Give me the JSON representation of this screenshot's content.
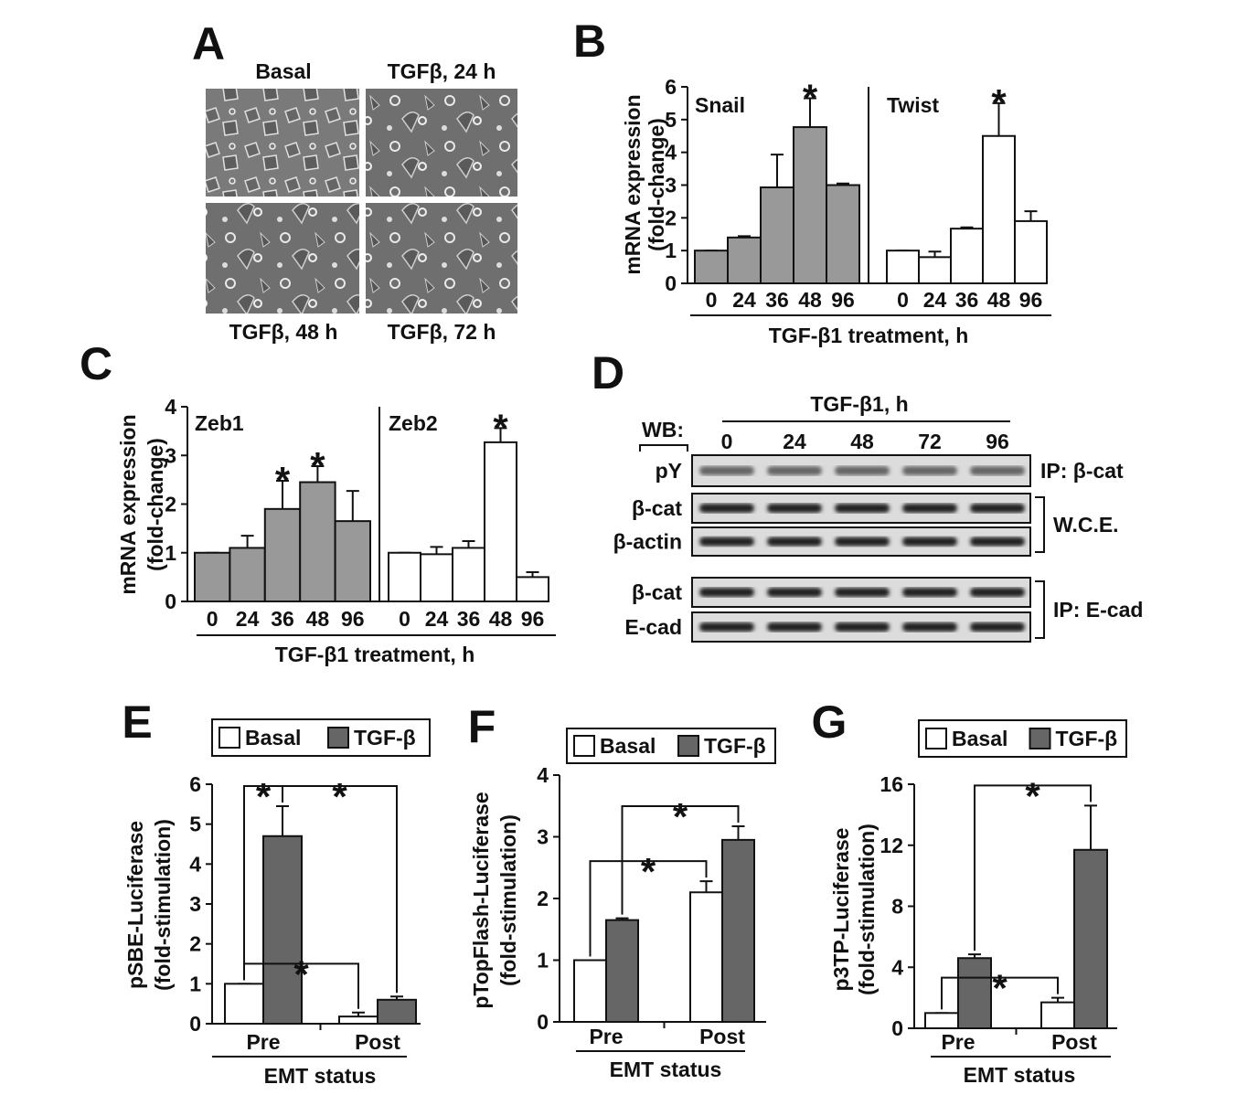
{
  "panel_a": {
    "letter": "A",
    "images": [
      "Basal",
      "TGFβ, 24 h",
      "TGFβ, 48 h",
      "TGFβ, 72 h"
    ]
  },
  "panel_d": {
    "letter": "D",
    "treatment": "TGF-β1, h",
    "wb": "WB:",
    "lanes": [
      "0",
      "24",
      "48",
      "72",
      "96"
    ],
    "rows": [
      "pY",
      "β-cat",
      "β-actin",
      "β-cat",
      "E-cad"
    ],
    "groups": [
      {
        "label": "IP: β-cat",
        "rows": [
          0
        ]
      },
      {
        "label": "W.C.E.",
        "rows": [
          1,
          2
        ]
      },
      {
        "label": "IP: E-cad",
        "rows": [
          3,
          4
        ]
      }
    ]
  },
  "chart_data": [
    {
      "type": "bar",
      "letter": "B",
      "facets": true,
      "ylabel": [
        "mRNA expression",
        "(fold-change)"
      ],
      "xlabel": "TGF-β1 treatment, h",
      "categories": [
        "0",
        "24",
        "36",
        "48",
        "96"
      ],
      "ylim": [
        0,
        6
      ],
      "yticks": [
        0,
        1,
        2,
        3,
        4,
        5,
        6
      ],
      "marker": "*",
      "series": [
        {
          "name": "Snail",
          "color": "#999999",
          "values": [
            1,
            1.4,
            2.93,
            4.77,
            3.0
          ],
          "errors": [
            0,
            0.04,
            1.0,
            0.88,
            0.05
          ],
          "significant": [
            false,
            false,
            false,
            true,
            false
          ]
        },
        {
          "name": "Twist",
          "color": "#ffffff",
          "values": [
            1,
            0.8,
            1.67,
            4.5,
            1.9
          ],
          "errors": [
            0,
            0.17,
            0.04,
            1.0,
            0.3
          ],
          "significant": [
            false,
            false,
            false,
            true,
            false
          ]
        }
      ]
    },
    {
      "type": "bar",
      "letter": "C",
      "facets": true,
      "ylabel": [
        "mRNA expression",
        "(fold-change)"
      ],
      "xlabel": "TGF-β1 treatment, h",
      "categories": [
        "0",
        "24",
        "36",
        "48",
        "96"
      ],
      "ylim": [
        0,
        4
      ],
      "yticks": [
        0,
        1,
        2,
        3,
        4
      ],
      "marker": "*",
      "series": [
        {
          "name": "Zeb1",
          "color": "#999999",
          "values": [
            1,
            1.1,
            1.9,
            2.45,
            1.65
          ],
          "errors": [
            0,
            0.25,
            0.58,
            0.33,
            0.62
          ],
          "significant": [
            false,
            false,
            true,
            true,
            false
          ]
        },
        {
          "name": "Zeb2",
          "color": "#ffffff",
          "values": [
            1,
            0.97,
            1.1,
            3.27,
            0.5
          ],
          "errors": [
            0,
            0.15,
            0.14,
            0.29,
            0.1
          ],
          "significant": [
            false,
            false,
            false,
            true,
            false
          ]
        }
      ]
    },
    {
      "type": "bar",
      "letter": "E",
      "facets": false,
      "legend": true,
      "ylabel": [
        "pSBE-Luciferase",
        "(fold-stimulation)"
      ],
      "xlabel": "EMT status",
      "categories": [
        "Pre",
        "Post"
      ],
      "ylim": [
        0,
        6
      ],
      "yticks": [
        0,
        1,
        2,
        3,
        4,
        5,
        6
      ],
      "series": [
        {
          "name": "Basal",
          "color": "#ffffff",
          "values": [
            1.0,
            0.18
          ],
          "errors": [
            0,
            0.1
          ]
        },
        {
          "name": "TGF-β",
          "color": "#666666",
          "values": [
            4.7,
            0.6
          ],
          "errors": [
            0.75,
            0.08
          ]
        }
      ],
      "brackets": [
        {
          "from": [
            0,
            0
          ],
          "to": [
            1,
            0
          ],
          "label": "*"
        },
        {
          "from": [
            1,
            0
          ],
          "to": [
            1,
            1
          ],
          "label": "*"
        },
        {
          "from": [
            0,
            0
          ],
          "to": [
            0,
            1
          ],
          "label": "*"
        }
      ]
    },
    {
      "type": "bar",
      "letter": "F",
      "facets": false,
      "legend": true,
      "ylabel": [
        "pTopFlash-Luciferase",
        "(fold-stimulation)"
      ],
      "xlabel": "EMT status",
      "categories": [
        "Pre",
        "Post"
      ],
      "ylim": [
        0,
        4
      ],
      "yticks": [
        0,
        1,
        2,
        3,
        4
      ],
      "series": [
        {
          "name": "Basal",
          "color": "#ffffff",
          "values": [
            1.0,
            2.1
          ],
          "errors": [
            0,
            0.18
          ]
        },
        {
          "name": "TGF-β",
          "color": "#666666",
          "values": [
            1.65,
            2.95
          ],
          "errors": [
            0.03,
            0.22
          ]
        }
      ],
      "brackets": [
        {
          "from": [
            0,
            0
          ],
          "to": [
            0,
            1
          ],
          "label": "*"
        },
        {
          "from": [
            1,
            0
          ],
          "to": [
            1,
            1
          ],
          "label": "*"
        }
      ]
    },
    {
      "type": "bar",
      "letter": "G",
      "facets": false,
      "legend": true,
      "ylabel": [
        "p3TP-Luciferase",
        "(fold-stimulation)"
      ],
      "xlabel": "EMT status",
      "categories": [
        "Pre",
        "Post"
      ],
      "ylim": [
        0,
        16
      ],
      "yticks": [
        0,
        4,
        8,
        12,
        16
      ],
      "series": [
        {
          "name": "Basal",
          "color": "#ffffff",
          "values": [
            1.0,
            1.7
          ],
          "errors": [
            0,
            0.3
          ]
        },
        {
          "name": "TGF-β",
          "color": "#666666",
          "values": [
            4.6,
            11.7
          ],
          "errors": [
            0.25,
            2.9
          ]
        }
      ],
      "brackets": [
        {
          "from": [
            0,
            0
          ],
          "to": [
            0,
            1
          ],
          "label": "*"
        },
        {
          "from": [
            1,
            0
          ],
          "to": [
            1,
            1
          ],
          "label": "*"
        }
      ]
    }
  ]
}
